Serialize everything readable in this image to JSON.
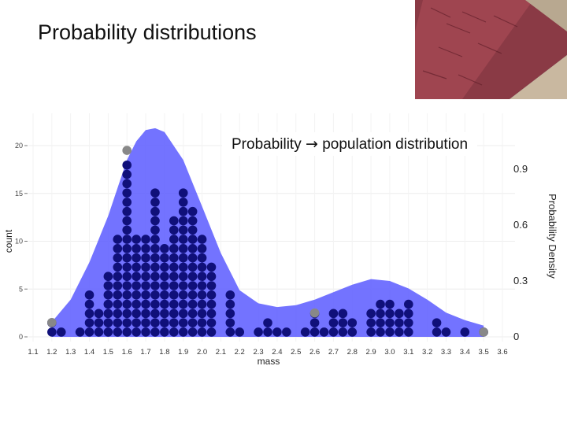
{
  "slide": {
    "title": "Probability distributions",
    "overlay_title_left": "Probability",
    "overlay_title_arrow": "→",
    "overlay_title_right": "population distribution"
  },
  "photo": {
    "subject": "salmon-school-photo",
    "colors": [
      "#7a2a35",
      "#a84a55",
      "#6b7a8a",
      "#c9b8a0"
    ]
  },
  "chart_data": {
    "type": "dot-histogram-with-density",
    "xlabel": "mass",
    "ylabel_left": "count",
    "ylabel_right": "Probability Density",
    "x_ticks": [
      "1.1",
      "1.2",
      "1.3",
      "1.4",
      "1.5",
      "1.6",
      "1.7",
      "1.8",
      "1.9",
      "2.0",
      "2.1",
      "2.2",
      "2.3",
      "2.4",
      "2.5",
      "2.6",
      "2.7",
      "2.8",
      "2.9",
      "3.0",
      "3.1",
      "3.2",
      "3.3",
      "3.4",
      "3.5",
      "3.6"
    ],
    "xlim": [
      1.1,
      3.6
    ],
    "y_left_ticks": [
      "0",
      "5",
      "10",
      "15",
      "20"
    ],
    "y_left_lim": [
      0,
      22
    ],
    "y_right_ticks": [
      "0",
      "0.3",
      "0.6",
      "0.9"
    ],
    "y_right_lim": [
      0,
      1.05
    ],
    "density_curve": {
      "color": "#5b5bff",
      "points": [
        [
          1.2,
          0.08
        ],
        [
          1.3,
          0.2
        ],
        [
          1.4,
          0.4
        ],
        [
          1.5,
          0.65
        ],
        [
          1.6,
          0.95
        ],
        [
          1.65,
          1.05
        ],
        [
          1.7,
          1.11
        ],
        [
          1.75,
          1.12
        ],
        [
          1.8,
          1.1
        ],
        [
          1.9,
          0.95
        ],
        [
          2.0,
          0.7
        ],
        [
          2.1,
          0.45
        ],
        [
          2.2,
          0.25
        ],
        [
          2.3,
          0.18
        ],
        [
          2.4,
          0.16
        ],
        [
          2.5,
          0.17
        ],
        [
          2.6,
          0.2
        ],
        [
          2.7,
          0.24
        ],
        [
          2.8,
          0.28
        ],
        [
          2.9,
          0.31
        ],
        [
          3.0,
          0.3
        ],
        [
          3.1,
          0.26
        ],
        [
          3.2,
          0.2
        ],
        [
          3.3,
          0.13
        ],
        [
          3.4,
          0.09
        ],
        [
          3.5,
          0.06
        ]
      ]
    },
    "dot_color": "#10107a",
    "gray_dot_color": "#888888",
    "dot_columns": [
      {
        "x": 1.2,
        "n": 2
      },
      {
        "x": 1.25,
        "n": 1
      },
      {
        "x": 1.35,
        "n": 1
      },
      {
        "x": 1.4,
        "n": 5
      },
      {
        "x": 1.45,
        "n": 3
      },
      {
        "x": 1.5,
        "n": 7
      },
      {
        "x": 1.55,
        "n": 11
      },
      {
        "x": 1.6,
        "n": 19
      },
      {
        "x": 1.65,
        "n": 11
      },
      {
        "x": 1.7,
        "n": 11
      },
      {
        "x": 1.75,
        "n": 16
      },
      {
        "x": 1.8,
        "n": 10
      },
      {
        "x": 1.85,
        "n": 13
      },
      {
        "x": 1.9,
        "n": 16
      },
      {
        "x": 1.95,
        "n": 14
      },
      {
        "x": 2.0,
        "n": 11
      },
      {
        "x": 2.05,
        "n": 8
      },
      {
        "x": 2.15,
        "n": 5
      },
      {
        "x": 2.2,
        "n": 1
      },
      {
        "x": 2.3,
        "n": 1
      },
      {
        "x": 2.35,
        "n": 2
      },
      {
        "x": 2.4,
        "n": 1
      },
      {
        "x": 2.45,
        "n": 1
      },
      {
        "x": 2.55,
        "n": 1
      },
      {
        "x": 2.6,
        "n": 3
      },
      {
        "x": 2.65,
        "n": 1
      },
      {
        "x": 2.7,
        "n": 3
      },
      {
        "x": 2.75,
        "n": 3
      },
      {
        "x": 2.8,
        "n": 2
      },
      {
        "x": 2.9,
        "n": 3
      },
      {
        "x": 2.95,
        "n": 4
      },
      {
        "x": 3.0,
        "n": 4
      },
      {
        "x": 3.05,
        "n": 3
      },
      {
        "x": 3.1,
        "n": 4
      },
      {
        "x": 3.25,
        "n": 2
      },
      {
        "x": 3.3,
        "n": 1
      },
      {
        "x": 3.4,
        "n": 1
      },
      {
        "x": 3.5,
        "n": 1
      }
    ],
    "gray_dots": [
      [
        1.2,
        2
      ],
      [
        1.6,
        20
      ],
      [
        2.6,
        3
      ],
      [
        3.5,
        1
      ]
    ]
  }
}
